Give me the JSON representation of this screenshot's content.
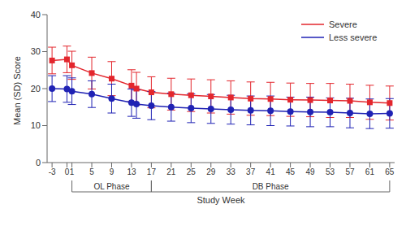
{
  "chart_data": {
    "type": "line",
    "ylabel": "Mean (SD) Score",
    "xlabel": "Study Week",
    "x": [
      -3,
      0,
      1,
      5,
      9,
      13,
      14,
      17,
      21,
      25,
      29,
      33,
      37,
      41,
      45,
      49,
      53,
      57,
      61,
      65
    ],
    "series": [
      {
        "name": "Severe",
        "color": "#e3262d",
        "marker": "square",
        "values": [
          27.6,
          27.9,
          26.3,
          24.2,
          22.7,
          20.8,
          20.0,
          19.0,
          18.5,
          18.2,
          17.9,
          17.6,
          17.3,
          17.2,
          17.0,
          16.9,
          16.8,
          16.7,
          16.3,
          16.1
        ],
        "sd": [
          3.6,
          3.6,
          3.8,
          4.3,
          4.6,
          4.3,
          4.4,
          4.2,
          4.3,
          4.4,
          4.5,
          4.5,
          4.5,
          4.5,
          4.5,
          4.5,
          4.6,
          4.5,
          4.6,
          4.6
        ]
      },
      {
        "name": "Less severe",
        "color": "#1f22b4",
        "marker": "circle",
        "values": [
          20.0,
          19.9,
          19.3,
          18.5,
          17.3,
          16.2,
          15.8,
          15.4,
          15.0,
          14.7,
          14.5,
          14.3,
          14.1,
          14.0,
          13.8,
          13.7,
          13.6,
          13.4,
          13.2,
          13.3
        ],
        "sd": [
          3.5,
          3.6,
          3.6,
          3.6,
          3.9,
          3.7,
          3.8,
          3.8,
          3.8,
          3.9,
          3.9,
          3.9,
          3.9,
          4.0,
          3.9,
          4.0,
          3.9,
          4.0,
          4.0,
          4.0
        ]
      }
    ],
    "xlim": [
      -4,
      66
    ],
    "xticks": [
      -3,
      0,
      1,
      5,
      9,
      13,
      17,
      21,
      25,
      29,
      33,
      37,
      41,
      45,
      49,
      53,
      57,
      61,
      65
    ],
    "ylim": [
      0,
      40
    ],
    "yticks": [
      0,
      10,
      20,
      30,
      40
    ],
    "grid": false,
    "legend": "upper right",
    "annotations": [
      {
        "text": "OL Phase",
        "x": [
          1,
          17
        ]
      },
      {
        "text": "DB Phase",
        "x": [
          17,
          65
        ]
      }
    ]
  }
}
